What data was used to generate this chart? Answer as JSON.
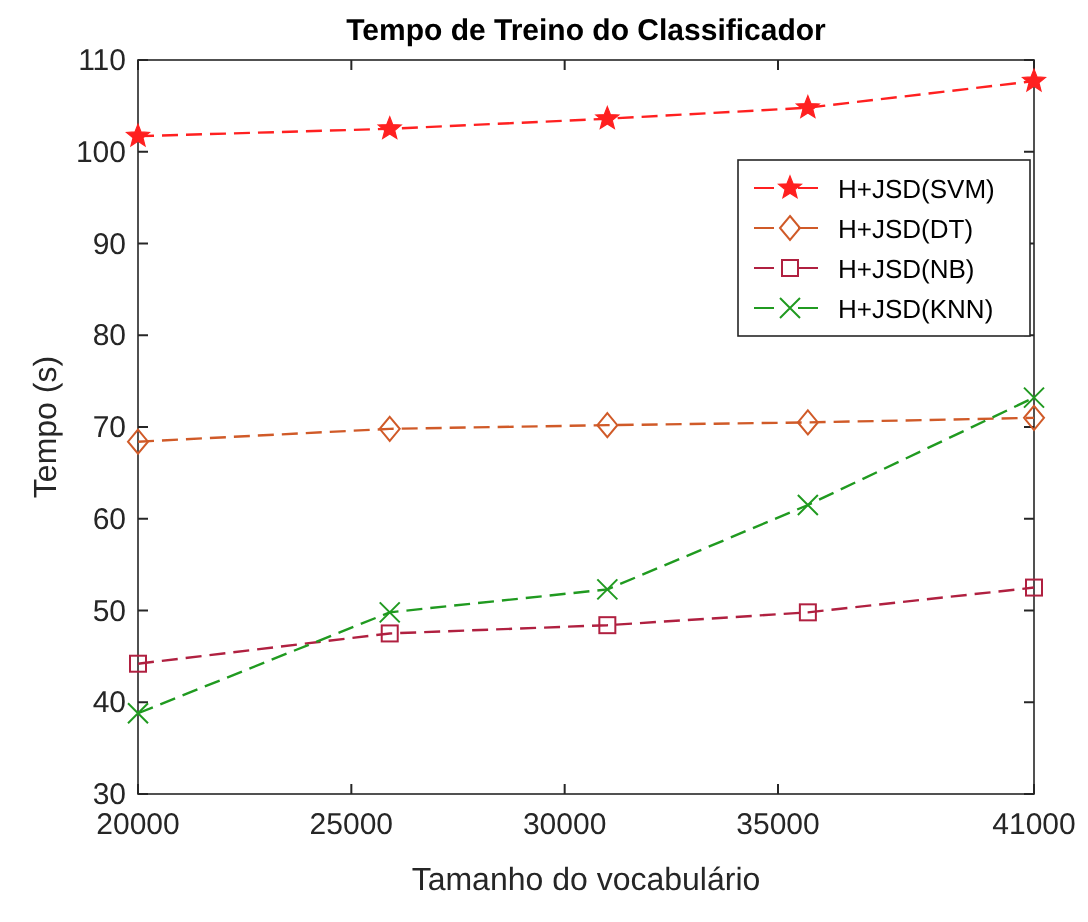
{
  "chart_data": {
    "type": "line",
    "title": "Tempo de Treino do Classificador",
    "xlabel": "Tamanho do vocabulário",
    "ylabel": "Tempo (s)",
    "x": [
      20000,
      25900,
      31000,
      35700,
      41000
    ],
    "xlim": [
      20000,
      41000
    ],
    "xticks": [
      20000,
      25000,
      30000,
      35000,
      41000
    ],
    "ylim": [
      30,
      110
    ],
    "yticks": [
      30,
      40,
      50,
      60,
      70,
      80,
      90,
      100,
      110
    ],
    "grid": false,
    "legend": "top right",
    "line_style": "dashed",
    "series": [
      {
        "name": "H+JSD(SVM)",
        "color": "#ff2020",
        "marker": "star",
        "values": [
          101.7,
          102.5,
          103.6,
          104.8,
          107.7
        ]
      },
      {
        "name": "H+JSD(DT)",
        "color": "#d05a28",
        "marker": "diamond",
        "values": [
          68.4,
          69.8,
          70.2,
          70.5,
          71
        ]
      },
      {
        "name": "H+JSD(NB)",
        "color": "#b02040",
        "marker": "square",
        "values": [
          44.2,
          47.5,
          48.4,
          49.8,
          52.5
        ]
      },
      {
        "name": "H+JSD(KNN)",
        "color": "#209a20",
        "marker": "cross",
        "values": [
          38.8,
          49.8,
          52.3,
          61.5,
          73.2
        ]
      }
    ]
  }
}
